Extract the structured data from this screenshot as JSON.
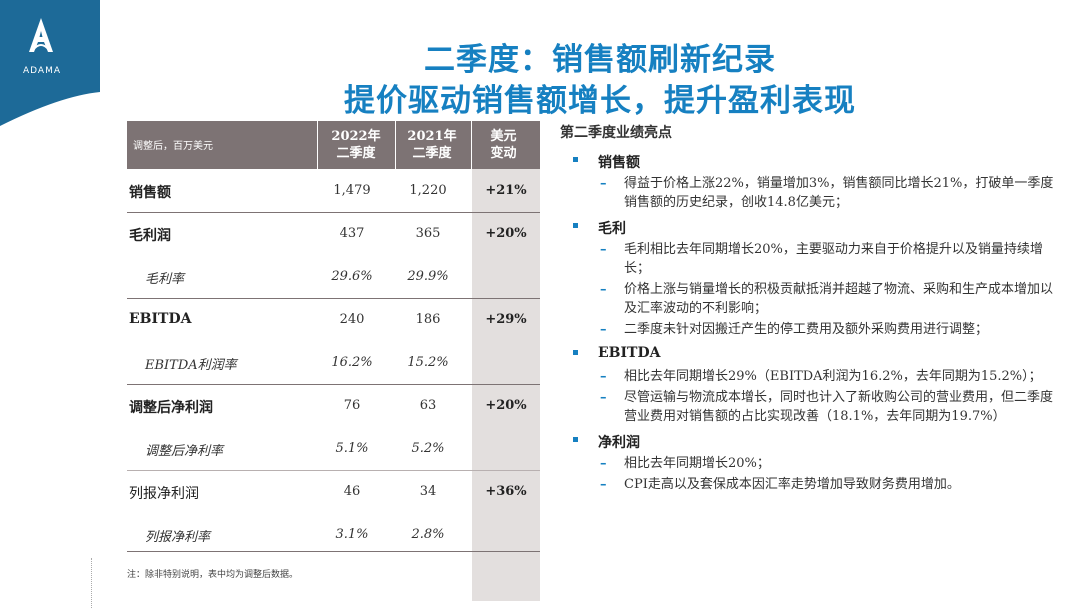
{
  "brand": {
    "logo_text": "ADAMA",
    "accent": "#1680c1",
    "header_bg": "#7d7374",
    "shade_bg": "#e3dfde",
    "logo_bg": "#1d6a98"
  },
  "title": {
    "line1": "二季度：销售额刷新纪录",
    "line2": "提价驱动销售额增长，提升盈利表现"
  },
  "table": {
    "unit_label": "调整后，百万美元",
    "headers": [
      {
        "line1": "2022年",
        "line2": "二季度"
      },
      {
        "line1": "2021年",
        "line2": "二季度"
      },
      {
        "line1": "美元",
        "line2": "变动"
      }
    ],
    "rows": [
      {
        "label": "销售额",
        "v2022": "1,479",
        "v2021": "1,220",
        "change": "+21%"
      },
      {
        "label": "毛利润",
        "v2022": "437",
        "v2021": "365",
        "change": "+20%"
      },
      {
        "label": "毛利率",
        "v2022": "29.6%",
        "v2021": "29.9%",
        "change": ""
      },
      {
        "label": "EBITDA",
        "v2022": "240",
        "v2021": "186",
        "change": "+29%"
      },
      {
        "label": "EBITDA利润率",
        "v2022": "16.2%",
        "v2021": "15.2%",
        "change": ""
      },
      {
        "label": "调整后净利润",
        "v2022": "76",
        "v2021": "63",
        "change": "+20%"
      },
      {
        "label": "调整后净利率",
        "v2022": "5.1%",
        "v2021": "5.2%",
        "change": ""
      },
      {
        "label": "列报净利润",
        "v2022": "46",
        "v2021": "34",
        "change": "+36%"
      },
      {
        "label": "列报净利率",
        "v2022": "3.1%",
        "v2021": "2.8%",
        "change": ""
      }
    ]
  },
  "footnote": "注：除非特别说明，表中均为调整后数据。",
  "highlights": {
    "title": "第二季度业绩亮点",
    "sections": [
      {
        "heading": "销售额",
        "items": [
          "得益于价格上涨22%，销量增加3%，销售额同比增长21%，打破单一季度销售额的历史纪录，创收14.8亿美元；"
        ]
      },
      {
        "heading": "毛利",
        "items": [
          "毛利相比去年同期增长20%，主要驱动力来自于价格提升以及销量持续增长；",
          "价格上涨与销量增长的积极贡献抵消并超越了物流、采购和生产成本增加以及汇率波动的不利影响；",
          "二季度未针对因搬迁产生的停工费用及额外采购费用进行调整；"
        ]
      },
      {
        "heading": "EBITDA",
        "items": [
          "相比去年同期增长29%（EBITDA利润为16.2%，去年同期为15.2%）；",
          "尽管运输与物流成本增长，同时也计入了新收购公司的营业费用，但二季度营业费用对销售额的占比实现改善（18.1%，去年同期为19.7%）"
        ]
      },
      {
        "heading": "净利润",
        "items": [
          "相比去年同期增长20%；",
          "CPI走高以及套保成本因汇率走势增加导致财务费用增加。"
        ]
      }
    ]
  }
}
